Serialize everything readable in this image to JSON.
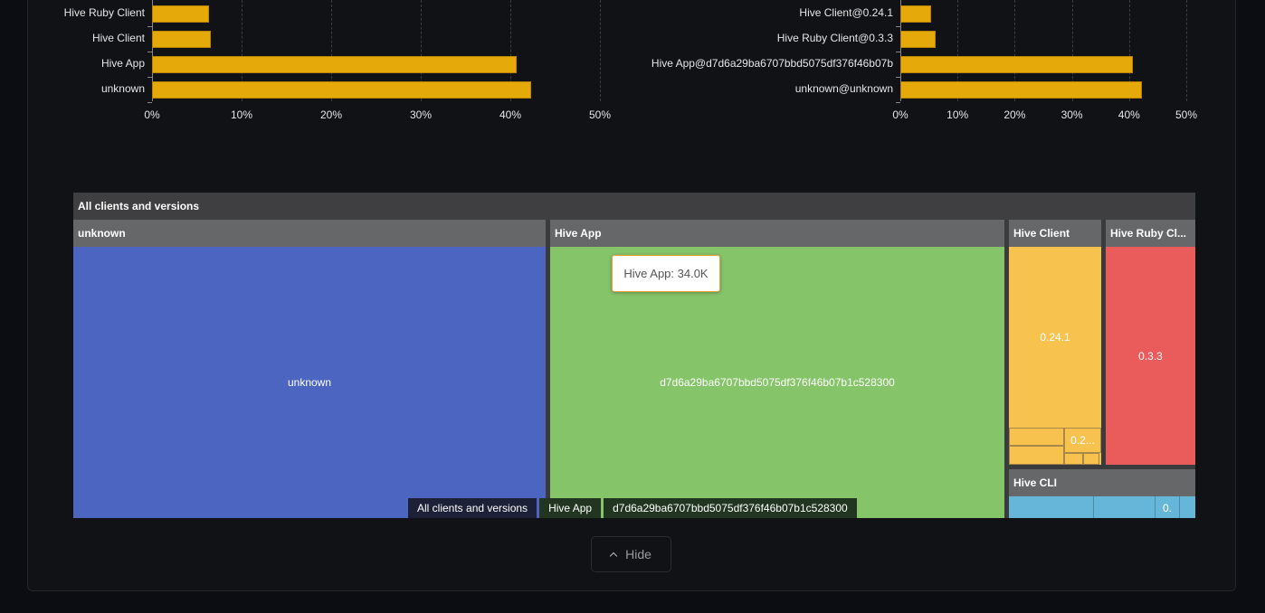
{
  "chart_data": [
    {
      "type": "bar",
      "orientation": "horizontal",
      "categories": [
        "Hive Ruby Client",
        "Hive Client",
        "Hive App",
        "unknown"
      ],
      "values": [
        6.4,
        6.6,
        40.7,
        42.3
      ],
      "xlim": [
        0,
        50
      ],
      "xticks": [
        "0%",
        "10%",
        "20%",
        "30%",
        "40%",
        "50%"
      ],
      "grid": true,
      "color": "#e6a90a"
    },
    {
      "type": "bar",
      "orientation": "horizontal",
      "categories": [
        "Hive Client@0.24.1",
        "Hive Ruby Client@0.3.3",
        "Hive App@d7d6a29ba6707bbd5075df376f46b07b",
        "unknown@unknown"
      ],
      "values": [
        5.4,
        6.2,
        40.7,
        42.2
      ],
      "xlim": [
        0,
        50
      ],
      "xticks": [
        "0%",
        "10%",
        "20%",
        "30%",
        "40%",
        "50%"
      ],
      "grid": true,
      "color": "#e6a90a"
    }
  ],
  "treemap": {
    "root": "All clients and versions",
    "groups": [
      {
        "name": "unknown",
        "color": "#4b65c1",
        "cells": [
          "unknown"
        ]
      },
      {
        "name": "Hive App",
        "color": "#86c46a",
        "cells": [
          "d7d6a29ba6707bbd5075df376f46b07b1c528300"
        ]
      },
      {
        "name": "Hive Client",
        "color": "#f8c24e",
        "cells": [
          "0.24.1",
          "0.2..."
        ]
      },
      {
        "name": "Hive Ruby Cl...",
        "color": "#ea5b5b",
        "cells": [
          "0.3.3"
        ]
      },
      {
        "name": "Hive CLI",
        "color": "#66b6d9",
        "cells": [
          "0."
        ]
      }
    ],
    "tooltip": "Hive App: 34.0K",
    "breadcrumb": [
      "All clients and versions",
      "Hive App",
      "d7d6a29ba6707bbd5075df376f46b07b1c528300"
    ]
  },
  "hide_button": "Hide"
}
